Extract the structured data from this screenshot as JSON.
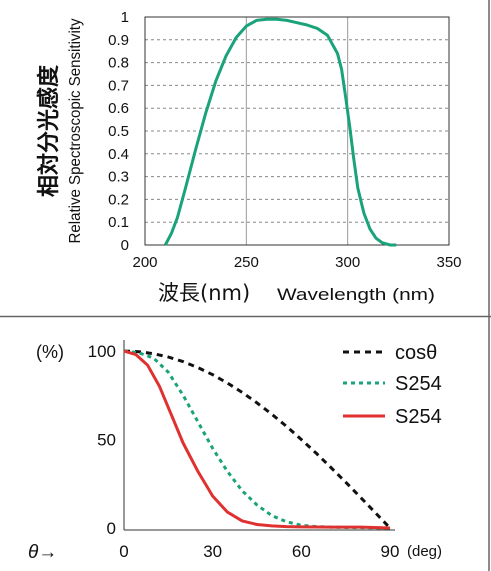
{
  "chart_data": [
    {
      "type": "line",
      "title": "",
      "ylabel_jp": "相対分光感度",
      "ylabel_en": "Relative Spectroscopic Sensitivity",
      "xlabel_jp": "波長",
      "xlabel_unit": "(nm)",
      "xlabel_en": "Wavelength (nm)",
      "xlim": [
        200,
        350
      ],
      "ylim": [
        0,
        1
      ],
      "x_ticks": [
        "200",
        "250",
        "300",
        "350"
      ],
      "y_ticks": [
        "0",
        "0.1",
        "0.2",
        "0.3",
        "0.4",
        "0.5",
        "0.6",
        "0.7",
        "0.8",
        "0.9",
        "1"
      ],
      "grid": true,
      "colors": {
        "curve": "#1aa37a",
        "grid": "#999999"
      },
      "series": [
        {
          "x": [
            210,
            213,
            216,
            220,
            225,
            230,
            235,
            240,
            245,
            250,
            255,
            260,
            265,
            270,
            275,
            280,
            285,
            290,
            295,
            297,
            299,
            301,
            303,
            305,
            308,
            311,
            314,
            317,
            321,
            324
          ],
          "values": [
            0.0,
            0.05,
            0.12,
            0.25,
            0.42,
            0.58,
            0.72,
            0.83,
            0.91,
            0.96,
            0.985,
            0.99,
            0.99,
            0.985,
            0.975,
            0.965,
            0.95,
            0.92,
            0.84,
            0.77,
            0.65,
            0.52,
            0.38,
            0.25,
            0.14,
            0.07,
            0.03,
            0.01,
            0.0,
            0.0
          ]
        }
      ]
    },
    {
      "type": "line",
      "title": "",
      "ylabel": "(%)",
      "xlabel": "θ→",
      "xunit": "(deg)",
      "xlim": [
        0,
        90
      ],
      "ylim": [
        0,
        100
      ],
      "x_ticks": [
        "0",
        "30",
        "60",
        "90"
      ],
      "y_ticks": [
        "0",
        "50",
        "100"
      ],
      "grid": false,
      "legend_position": "top-right",
      "series": [
        {
          "name": "cosθ",
          "style": "dashed",
          "color": "#111111",
          "x": [
            0,
            5,
            10,
            15,
            20,
            25,
            30,
            35,
            40,
            45,
            50,
            55,
            60,
            65,
            70,
            75,
            80,
            85,
            90
          ],
          "values": [
            100,
            99.6,
            98.5,
            96.6,
            94.0,
            90.6,
            86.6,
            81.9,
            76.6,
            70.7,
            64.3,
            57.4,
            50.0,
            42.3,
            34.2,
            25.9,
            17.4,
            8.7,
            0
          ]
        },
        {
          "name": "S254",
          "style": "dotted",
          "color": "#1aa37a",
          "x": [
            0,
            5,
            10,
            15,
            20,
            25,
            30,
            35,
            40,
            45,
            50,
            55,
            60,
            65,
            70,
            75,
            80,
            90
          ],
          "values": [
            100,
            99,
            96,
            88,
            75,
            60,
            45,
            32,
            21,
            13,
            7,
            3.5,
            1.5,
            0.8,
            0.5,
            0.3,
            0.2,
            0
          ]
        },
        {
          "name": "S254",
          "style": "solid",
          "color": "#e03131",
          "x": [
            0,
            4,
            8,
            12,
            16,
            20,
            25,
            30,
            35,
            40,
            45,
            50,
            55,
            60,
            70,
            80,
            90
          ],
          "values": [
            100,
            98,
            92,
            80,
            64,
            48,
            32,
            18,
            9,
            4,
            2,
            1.2,
            0.8,
            0.6,
            0.5,
            0.5,
            0
          ]
        }
      ]
    }
  ]
}
